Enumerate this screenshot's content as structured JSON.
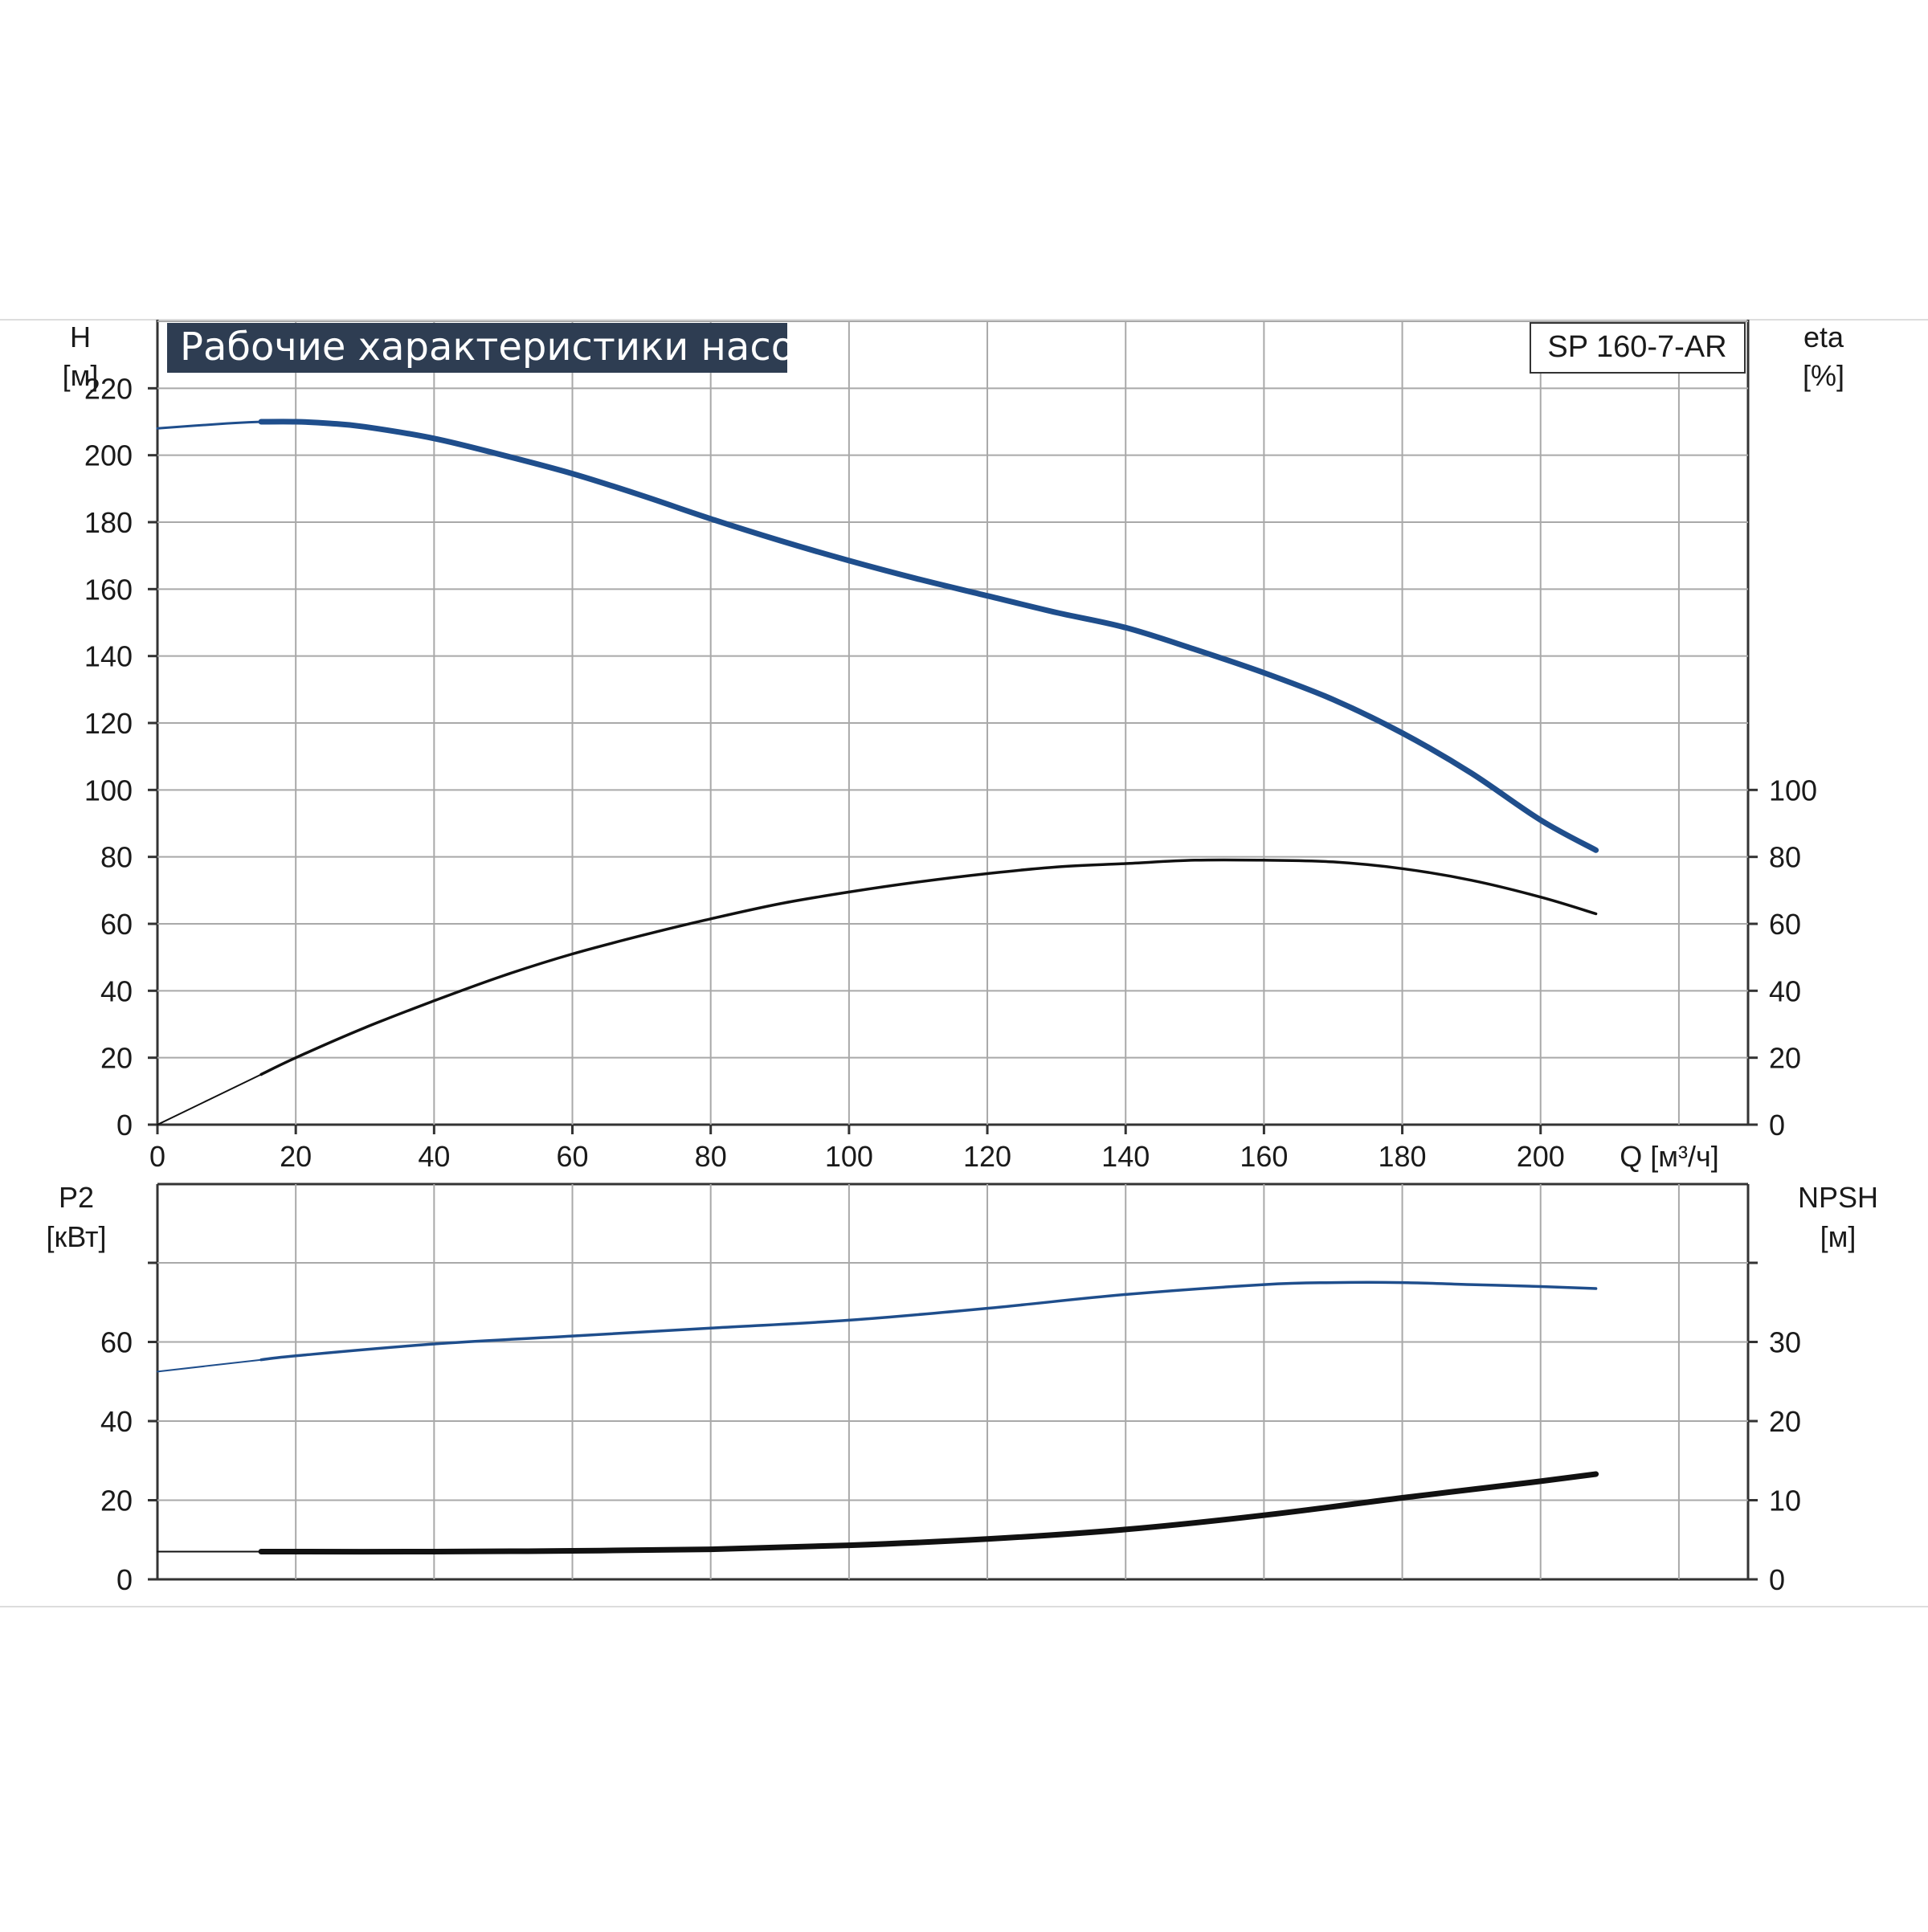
{
  "title": "Рабочие характеристики насоса",
  "model": "SP 160-7-AR",
  "colors": {
    "title_bg": "#2e3d52",
    "grid": "#a9a9a9",
    "axis": "#333333",
    "head_curve": "#1f4e8c",
    "eta_curve": "#111111",
    "p2_curve": "#1f4e8c",
    "npsh_curve": "#111111"
  },
  "chart_data": [
    {
      "type": "line",
      "panel": "top",
      "xlabel": "Q [м³/ч]",
      "x_ticks": [
        "0",
        "20",
        "40",
        "60",
        "80",
        "100",
        "120",
        "140",
        "160",
        "180",
        "200"
      ],
      "xlim": [
        0,
        230
      ],
      "left_axis": {
        "label": "H",
        "unit": "[м]",
        "ylim": [
          0,
          240
        ],
        "ticks": [
          "0",
          "20",
          "40",
          "60",
          "80",
          "100",
          "120",
          "140",
          "160",
          "180",
          "200",
          "220"
        ]
      },
      "right_axis": {
        "label": "eta",
        "unit": "[%]",
        "ylim": [
          0,
          240
        ],
        "ticks": [
          "0",
          "20",
          "40",
          "60",
          "80",
          "100"
        ]
      },
      "grid": true,
      "series": [
        {
          "key": "H",
          "axis": "left",
          "x": [
            0,
            10,
            15,
            20,
            25,
            30,
            40,
            50,
            60,
            70,
            80,
            90,
            100,
            110,
            120,
            130,
            140,
            150,
            160,
            170,
            180,
            190,
            200,
            208
          ],
          "y": [
            208,
            209.5,
            210,
            210,
            209.5,
            208.5,
            205,
            200,
            194.5,
            188,
            181,
            174.5,
            168.5,
            163,
            158,
            153,
            148.5,
            142,
            135,
            127,
            117,
            105,
            91,
            82
          ]
        },
        {
          "key": "eta",
          "axis": "right",
          "x": [
            0,
            15,
            20,
            30,
            40,
            50,
            60,
            70,
            80,
            90,
            100,
            110,
            120,
            130,
            140,
            150,
            160,
            170,
            180,
            190,
            200,
            208
          ],
          "y": [
            0,
            15,
            20,
            29,
            37,
            44.5,
            51,
            56.5,
            61.5,
            66,
            69.5,
            72.5,
            75,
            77,
            78,
            79,
            79,
            78.5,
            76.5,
            73,
            68,
            63
          ]
        }
      ]
    },
    {
      "type": "line",
      "panel": "bottom",
      "xlim": [
        0,
        230
      ],
      "left_axis": {
        "label": "P2",
        "unit": "[кВт]",
        "ylim": [
          0,
          80
        ],
        "ticks": [
          "0",
          "20",
          "40",
          "60"
        ]
      },
      "right_axis": {
        "label": "NPSH",
        "unit": "[м]",
        "ylim": [
          0,
          40
        ],
        "ticks": [
          "0",
          "10",
          "20",
          "30"
        ]
      },
      "grid": true,
      "series": [
        {
          "key": "P2",
          "axis": "left",
          "x": [
            0,
            15,
            20,
            40,
            60,
            80,
            100,
            120,
            140,
            160,
            170,
            180,
            190,
            200,
            208
          ],
          "y": [
            52.5,
            55.5,
            56.5,
            59.5,
            61.5,
            63.5,
            65.5,
            68.5,
            72,
            74.5,
            75,
            75,
            74.5,
            74,
            73.5
          ]
        },
        {
          "key": "NPSH",
          "axis": "right",
          "x": [
            0,
            15,
            40,
            60,
            80,
            100,
            120,
            140,
            160,
            180,
            200,
            208
          ],
          "y": [
            3.5,
            3.5,
            3.5,
            3.6,
            3.8,
            4.3,
            5.1,
            6.3,
            8.1,
            10.3,
            12.4,
            13.3
          ]
        }
      ]
    }
  ]
}
